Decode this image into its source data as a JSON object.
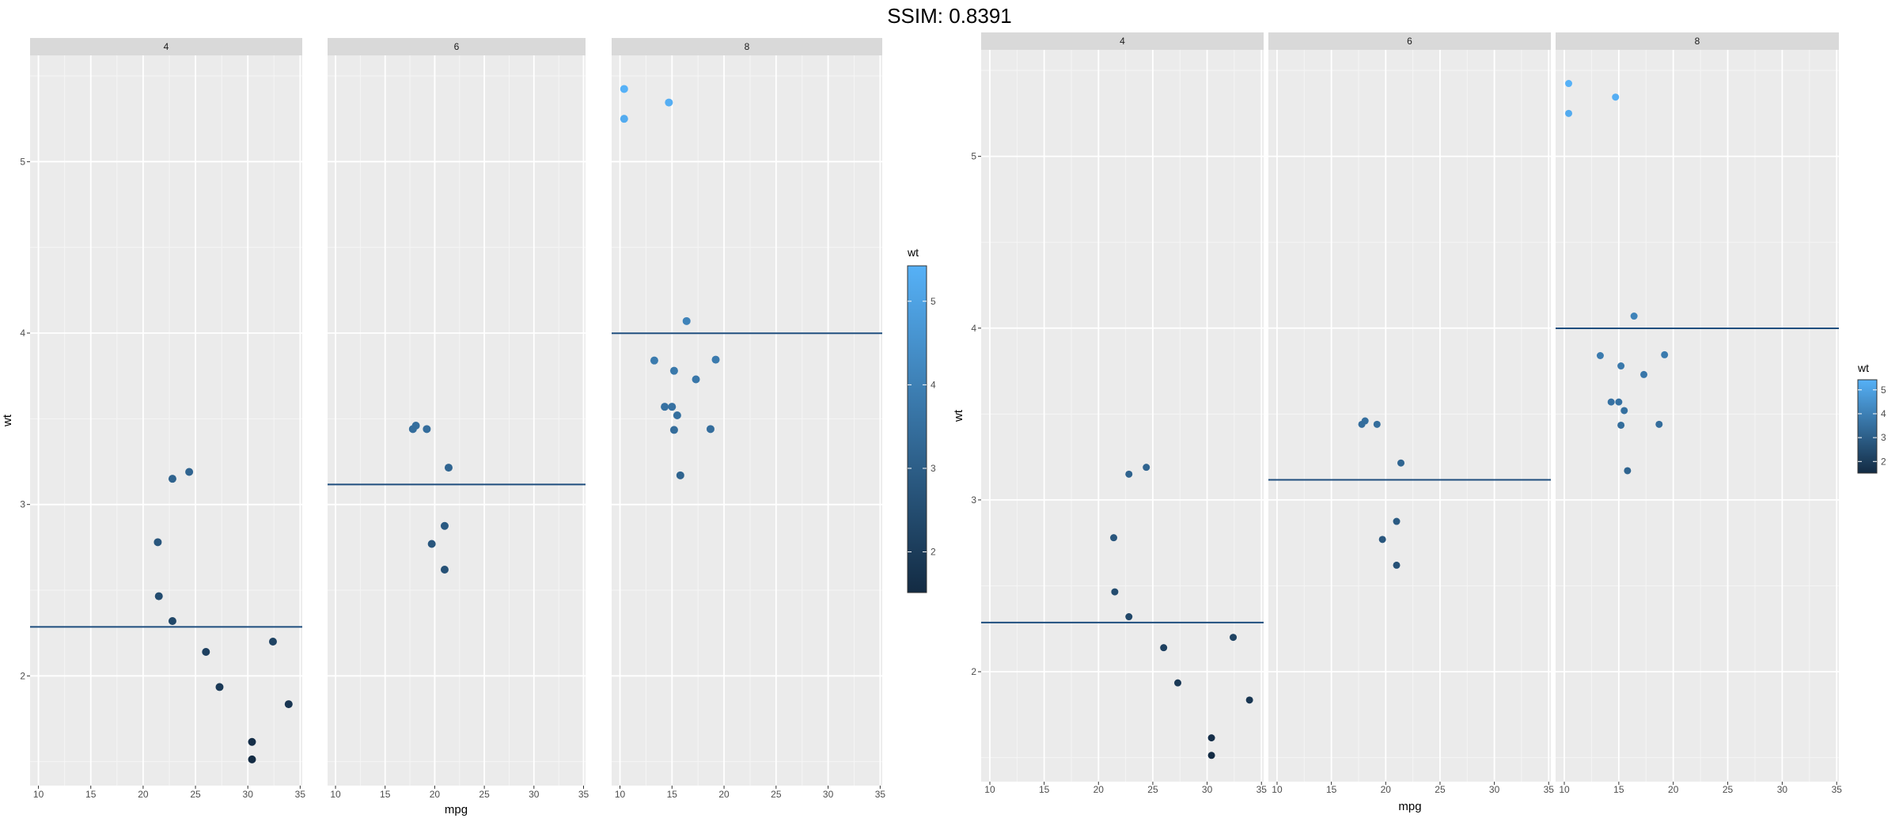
{
  "title": "SSIM: 0.8391",
  "chart_data": [
    {
      "type": "scatter",
      "facet_var": "cyl",
      "xlabel": "mpg",
      "ylabel": "wt",
      "xlim": [
        9.2,
        35.2
      ],
      "ylim": [
        1.36,
        5.62
      ],
      "x_ticks": [
        10,
        15,
        20,
        25,
        30,
        35
      ],
      "y_ticks": [
        2,
        3,
        4,
        5
      ],
      "grid": true,
      "color_var": "wt",
      "color_range": [
        1.513,
        5.424
      ],
      "color_low": "#132B43",
      "color_high": "#56B1F7",
      "hline_color": "#1f4e7e",
      "legend": {
        "title": "wt",
        "placement": "right",
        "breaks": [
          2,
          3,
          4,
          5
        ]
      },
      "panels": [
        {
          "label": "4",
          "hline": 2.286,
          "points": [
            [
              22.8,
              2.32
            ],
            [
              24.4,
              3.19
            ],
            [
              22.8,
              3.15
            ],
            [
              32.4,
              2.2
            ],
            [
              30.4,
              1.615
            ],
            [
              33.9,
              1.835
            ],
            [
              21.5,
              2.465
            ],
            [
              27.3,
              1.935
            ],
            [
              26.0,
              2.14
            ],
            [
              30.4,
              1.513
            ],
            [
              21.4,
              2.78
            ]
          ]
        },
        {
          "label": "6",
          "hline": 3.117,
          "points": [
            [
              21.0,
              2.62
            ],
            [
              21.0,
              2.875
            ],
            [
              21.4,
              3.215
            ],
            [
              18.1,
              3.46
            ],
            [
              19.2,
              3.44
            ],
            [
              17.8,
              3.44
            ],
            [
              19.7,
              2.77
            ]
          ]
        },
        {
          "label": "8",
          "hline": 3.999,
          "points": [
            [
              18.7,
              3.44
            ],
            [
              14.3,
              3.57
            ],
            [
              16.4,
              4.07
            ],
            [
              17.3,
              3.73
            ],
            [
              15.2,
              3.78
            ],
            [
              10.4,
              5.25
            ],
            [
              10.4,
              5.424
            ],
            [
              14.7,
              5.345
            ],
            [
              15.5,
              3.52
            ],
            [
              15.2,
              3.435
            ],
            [
              13.3,
              3.84
            ],
            [
              19.2,
              3.845
            ],
            [
              15.8,
              3.17
            ],
            [
              15.0,
              3.57
            ]
          ]
        }
      ]
    },
    {
      "type": "scatter",
      "facet_var": "cyl",
      "xlabel": "mpg",
      "ylabel": "wt",
      "xlim": [
        9.2,
        35.2
      ],
      "ylim": [
        1.36,
        5.62
      ],
      "x_ticks": [
        10,
        15,
        20,
        25,
        30,
        35
      ],
      "y_ticks": [
        2,
        3,
        4,
        5
      ],
      "grid": true,
      "color_var": "wt",
      "color_range": [
        1.513,
        5.424
      ],
      "color_low": "#132B43",
      "color_high": "#56B1F7",
      "hline_color": "#1f4e7e",
      "legend": {
        "title": "wt",
        "placement": "right",
        "breaks": [
          2,
          3,
          4,
          5
        ]
      },
      "panels": [
        {
          "label": "4",
          "hline": 2.286,
          "points": [
            [
              22.8,
              2.32
            ],
            [
              24.4,
              3.19
            ],
            [
              22.8,
              3.15
            ],
            [
              32.4,
              2.2
            ],
            [
              30.4,
              1.615
            ],
            [
              33.9,
              1.835
            ],
            [
              21.5,
              2.465
            ],
            [
              27.3,
              1.935
            ],
            [
              26.0,
              2.14
            ],
            [
              30.4,
              1.513
            ],
            [
              21.4,
              2.78
            ]
          ]
        },
        {
          "label": "6",
          "hline": 3.117,
          "points": [
            [
              21.0,
              2.62
            ],
            [
              21.0,
              2.875
            ],
            [
              21.4,
              3.215
            ],
            [
              18.1,
              3.46
            ],
            [
              19.2,
              3.44
            ],
            [
              17.8,
              3.44
            ],
            [
              19.7,
              2.77
            ]
          ]
        },
        {
          "label": "8",
          "hline": 3.999,
          "points": [
            [
              18.7,
              3.44
            ],
            [
              14.3,
              3.57
            ],
            [
              16.4,
              4.07
            ],
            [
              17.3,
              3.73
            ],
            [
              15.2,
              3.78
            ],
            [
              10.4,
              5.25
            ],
            [
              10.4,
              5.424
            ],
            [
              14.7,
              5.345
            ],
            [
              15.5,
              3.52
            ],
            [
              15.2,
              3.435
            ],
            [
              13.3,
              3.84
            ],
            [
              19.2,
              3.845
            ],
            [
              15.8,
              3.17
            ],
            [
              15.0,
              3.57
            ]
          ]
        }
      ]
    }
  ]
}
